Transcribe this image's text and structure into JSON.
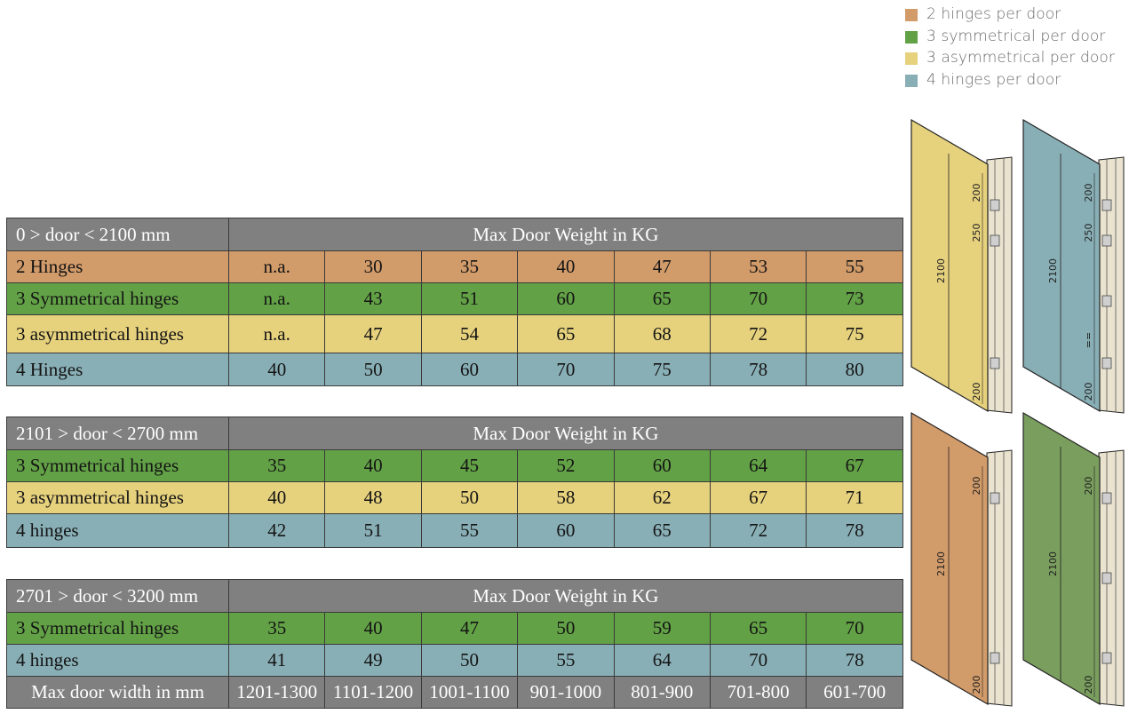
{
  "colors": {
    "two_hinges": "#d29b6a",
    "three_symmetrical": "#62a146",
    "three_asymmetrical": "#e6d17d",
    "four_hinges": "#89afb6",
    "header_gray": "#808080"
  },
  "legend": [
    {
      "label": "2 hinges per door",
      "color": "#d29b6a"
    },
    {
      "label": "3 symmetrical per door",
      "color": "#62a146"
    },
    {
      "label": "3 asymmetrical per door",
      "color": "#e6d17d"
    },
    {
      "label": "4 hinges per door",
      "color": "#89afb6"
    }
  ],
  "tables": [
    {
      "range": "0 > door < 2100 mm",
      "header": "Max Door Weight in KG",
      "rows": [
        {
          "label": "2 Hinges",
          "color": "orange",
          "values": [
            "n.a.",
            "30",
            "35",
            "40",
            "47",
            "53",
            "55"
          ]
        },
        {
          "label": "3 Symmetrical hinges",
          "color": "green",
          "values": [
            "n.a.",
            "43",
            "51",
            "60",
            "65",
            "70",
            "73"
          ]
        },
        {
          "label": "3 asymmetrical hinges",
          "color": "yellow",
          "values": [
            "n.a.",
            "47",
            "54",
            "65",
            "68",
            "72",
            "75"
          ]
        },
        {
          "label": "4 Hinges",
          "color": "blue",
          "values": [
            "40",
            "50",
            "60",
            "70",
            "75",
            "78",
            "80"
          ]
        }
      ]
    },
    {
      "range": "2101 > door < 2700 mm",
      "header": "Max Door Weight in KG",
      "rows": [
        {
          "label": "3 Symmetrical hinges",
          "color": "green",
          "values": [
            "35",
            "40",
            "45",
            "52",
            "60",
            "64",
            "67"
          ]
        },
        {
          "label": "3 asymmetrical hinges",
          "color": "yellow",
          "values": [
            "40",
            "48",
            "50",
            "58",
            "62",
            "67",
            "71"
          ]
        },
        {
          "label": "4 hinges",
          "color": "blue",
          "values": [
            "42",
            "51",
            "55",
            "60",
            "65",
            "72",
            "78"
          ]
        }
      ]
    },
    {
      "range": "2701 > door < 3200 mm",
      "header": "Max Door Weight in KG",
      "rows": [
        {
          "label": "3 Symmetrical hinges",
          "color": "green",
          "values": [
            "35",
            "40",
            "47",
            "50",
            "59",
            "65",
            "70"
          ]
        },
        {
          "label": "4 hinges",
          "color": "blue",
          "values": [
            "41",
            "49",
            "50",
            "55",
            "64",
            "70",
            "78"
          ]
        }
      ],
      "footer": {
        "label": "Max door width in mm",
        "values": [
          "1201-1300",
          "1101-1200",
          "1001-1100",
          "901-1000",
          "801-900",
          "701-800",
          "601-700"
        ]
      }
    }
  ],
  "doors": [
    {
      "name": "three-asymmetrical-door",
      "color": "#e6d17d",
      "height_label": "2100",
      "dims": [
        "200",
        "250",
        "200"
      ]
    },
    {
      "name": "four-hinges-door",
      "color": "#89afb6",
      "height_label": "2100",
      "dims": [
        "200",
        "250",
        "200"
      ],
      "equal_mark": "=="
    },
    {
      "name": "two-hinges-door",
      "color": "#d29b6a",
      "height_label": "2100",
      "dims": [
        "200",
        "200"
      ]
    },
    {
      "name": "three-symmetrical-door",
      "color": "#7a9e5e",
      "height_label": "2100",
      "dims": [
        "200",
        "200"
      ]
    }
  ]
}
